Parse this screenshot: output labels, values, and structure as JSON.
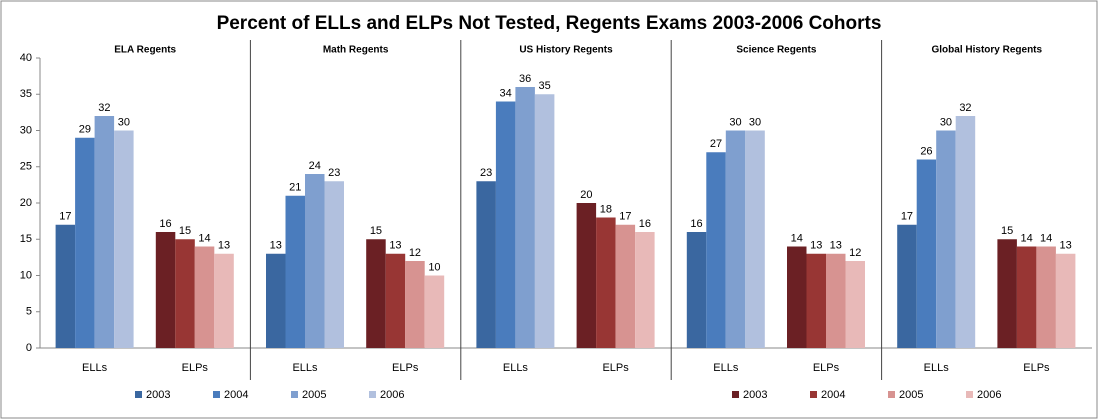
{
  "chart_data": {
    "type": "bar",
    "title": "Percent of ELLs and ELPs Not Tested, Regents Exams 2003-2006 Cohorts",
    "ylim": [
      0,
      40
    ],
    "yticks": [
      0,
      5,
      10,
      15,
      20,
      25,
      30,
      35,
      40
    ],
    "categories": [
      "ELLs",
      "ELPs"
    ],
    "legends": [
      {
        "series": [
          {
            "name": "2003",
            "color": "#3a67a0"
          },
          {
            "name": "2004",
            "color": "#4a7cbd"
          },
          {
            "name": "2005",
            "color": "#7f9fcf"
          },
          {
            "name": "2006",
            "color": "#b1c0de"
          }
        ]
      },
      {
        "series": [
          {
            "name": "2003",
            "color": "#6b2024"
          },
          {
            "name": "2004",
            "color": "#983634"
          },
          {
            "name": "2005",
            "color": "#d79391"
          },
          {
            "name": "2006",
            "color": "#e8b9b8"
          }
        ]
      }
    ],
    "panels": [
      {
        "title": "ELA Regents",
        "values": [
          [
            17,
            29,
            32,
            30
          ],
          [
            16,
            15,
            14,
            13
          ]
        ]
      },
      {
        "title": "Math Regents",
        "values": [
          [
            13,
            21,
            24,
            23
          ],
          [
            15,
            13,
            12,
            10
          ]
        ]
      },
      {
        "title": "US History  Regents",
        "values": [
          [
            23,
            34,
            36,
            35
          ],
          [
            20,
            18,
            17,
            16
          ]
        ]
      },
      {
        "title": "Science Regents",
        "values": [
          [
            16,
            27,
            30,
            30
          ],
          [
            14,
            13,
            13,
            12
          ]
        ]
      },
      {
        "title": "Global History  Regents",
        "values": [
          [
            17,
            26,
            30,
            32
          ],
          [
            15,
            14,
            14,
            13
          ]
        ]
      }
    ]
  }
}
